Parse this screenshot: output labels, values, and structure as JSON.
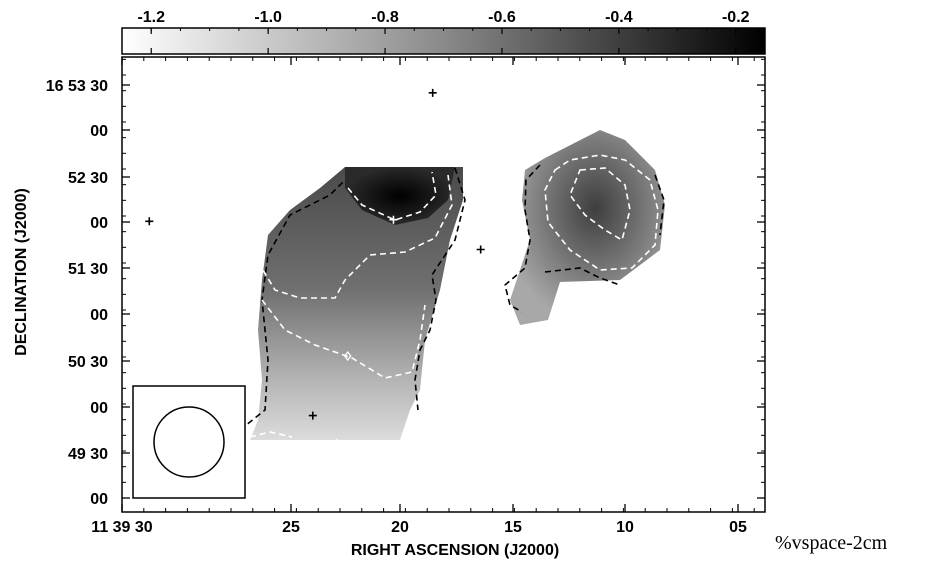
{
  "chart_data": {
    "type": "heatmap",
    "xlabel": "RIGHT ASCENSION (J2000)",
    "ylabel": "DECLINATION (J2000)",
    "x_ticks": [
      "11 39 30",
      "25",
      "20",
      "15",
      "10",
      "05"
    ],
    "y_ticks": [
      "16 53 30",
      "00",
      "52 30",
      "00",
      "51 30",
      "00",
      "50 30",
      "00",
      "49 30",
      "00"
    ],
    "colorbar": {
      "ticks": [
        "-1.2",
        "-1.0",
        "-0.8",
        "-0.6",
        "-0.4",
        "-0.2"
      ],
      "range": [
        -1.25,
        -0.15
      ],
      "colormap": "white-to-black"
    },
    "point_sources": [
      {
        "ra": "11 39 18.5",
        "dec": "16 53 25"
      },
      {
        "ra": "11 39 31.5",
        "dec": "16 52 03"
      },
      {
        "ra": "11 39 20.3",
        "dec": "16 52 04"
      },
      {
        "ra": "11 39 16.3",
        "dec": "16 51 45"
      },
      {
        "ra": "11 39 24.0",
        "dec": "16 49 59"
      }
    ],
    "diamond_markers": [
      {
        "ra": "11 39 22.4",
        "dec": "16 50 37"
      },
      {
        "ra": "11 39 22.9",
        "dec": "16 49 41"
      }
    ],
    "contours_dashed": true,
    "beam_inset": true
  },
  "annotation": "%vspace-2cm"
}
